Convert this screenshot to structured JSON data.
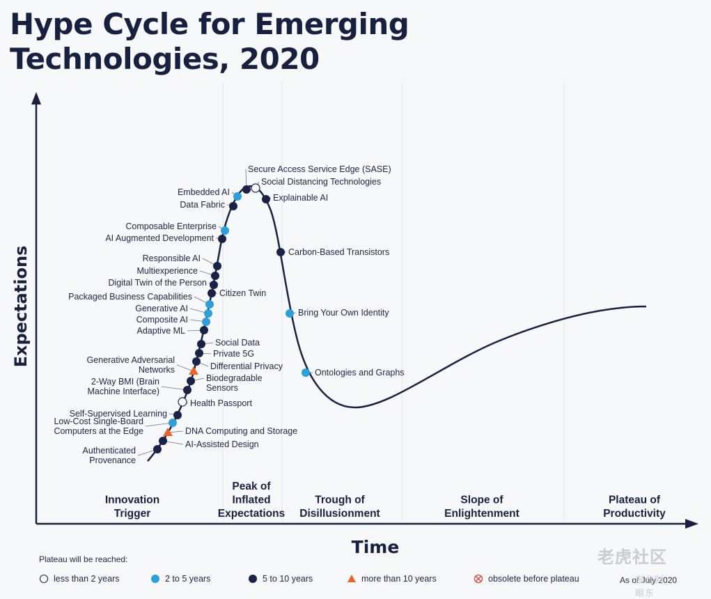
{
  "title": {
    "line1": "Hype Cycle for Emerging",
    "line2": "Technologies, 2020"
  },
  "axes": {
    "y_label": "Expectations",
    "x_label": "Time"
  },
  "phases": [
    {
      "lines": [
        "Innovation",
        "Trigger"
      ]
    },
    {
      "lines": [
        "Peak of",
        "Inflated",
        "Expectations"
      ]
    },
    {
      "lines": [
        "Trough of",
        "Disillusionment"
      ]
    },
    {
      "lines": [
        "Slope of",
        "Enlightenment"
      ]
    },
    {
      "lines": [
        "Plateau of",
        "Productivity"
      ]
    }
  ],
  "technologies": [
    {
      "name": [
        "Secure Access Service Edge (SASE)"
      ],
      "plateau": "5-10"
    },
    {
      "name": [
        "Social Distancing Technologies"
      ],
      "plateau": "<2"
    },
    {
      "name": [
        "Embedded AI"
      ],
      "plateau": "2-5"
    },
    {
      "name": [
        "Data Fabric"
      ],
      "plateau": "5-10"
    },
    {
      "name": [
        "Explainable AI"
      ],
      "plateau": "5-10"
    },
    {
      "name": [
        "Composable Enterprise"
      ],
      "plateau": "2-5"
    },
    {
      "name": [
        "AI Augmented Development"
      ],
      "plateau": "5-10"
    },
    {
      "name": [
        "Carbon-Based Transistors"
      ],
      "plateau": "5-10"
    },
    {
      "name": [
        "Responsible AI"
      ],
      "plateau": "5-10"
    },
    {
      "name": [
        "Multiexperience"
      ],
      "plateau": "5-10"
    },
    {
      "name": [
        "Digital Twin of the Person"
      ],
      "plateau": "5-10"
    },
    {
      "name": [
        "Citizen Twin"
      ],
      "plateau": "5-10"
    },
    {
      "name": [
        "Packaged Business Capabilities"
      ],
      "plateau": "2-5"
    },
    {
      "name": [
        "Generative AI"
      ],
      "plateau": "2-5"
    },
    {
      "name": [
        "Bring Your Own Identity"
      ],
      "plateau": "2-5"
    },
    {
      "name": [
        "Composite AI"
      ],
      "plateau": "2-5"
    },
    {
      "name": [
        "Adaptive ML"
      ],
      "plateau": "5-10"
    },
    {
      "name": [
        "Social Data"
      ],
      "plateau": "5-10"
    },
    {
      "name": [
        "Private 5G"
      ],
      "plateau": "5-10"
    },
    {
      "name": [
        "Differential Privacy"
      ],
      "plateau": "5-10"
    },
    {
      "name": [
        "Generative Adversarial",
        "Networks"
      ],
      "plateau": ">10"
    },
    {
      "name": [
        "Biodegradable",
        "Sensors"
      ],
      "plateau": "5-10"
    },
    {
      "name": [
        "2-Way BMI (Brain",
        "Machine Interface)"
      ],
      "plateau": "5-10"
    },
    {
      "name": [
        "Ontologies and Graphs"
      ],
      "plateau": "2-5"
    },
    {
      "name": [
        "Health Passport"
      ],
      "plateau": "<2"
    },
    {
      "name": [
        "Self-Supervised Learning"
      ],
      "plateau": "5-10"
    },
    {
      "name": [
        "Low-Cost Single-Board",
        "Computers at the Edge"
      ],
      "plateau": "2-5"
    },
    {
      "name": [
        "DNA Computing and Storage"
      ],
      "plateau": ">10"
    },
    {
      "name": [
        "AI-Assisted Design"
      ],
      "plateau": "5-10"
    },
    {
      "name": [
        "Authenticated",
        "Provenance"
      ],
      "plateau": "5-10"
    }
  ],
  "legend": {
    "caption": "Plateau will be reached:",
    "items": [
      {
        "key": "<2",
        "label": "less than 2 years",
        "symbol": "hollow-circle-icon",
        "color": "#ffffff"
      },
      {
        "key": "2-5",
        "label": "2 to 5 years",
        "symbol": "light-blue-circle-icon",
        "color": "#2e9fd9"
      },
      {
        "key": "5-10",
        "label": "5 to 10 years",
        "symbol": "dark-blue-circle-icon",
        "color": "#1a2347"
      },
      {
        "key": ">10",
        "label": "more than 10 years",
        "symbol": "orange-triangle-icon",
        "color": "#e8622a"
      },
      {
        "key": "obsolete",
        "label": "obsolete before plateau",
        "symbol": "crossed-circle-icon",
        "color": "#d9413a"
      }
    ]
  },
  "as_of": "As of July 2020",
  "watermark": {
    "text": "老虎社区",
    "sub": "东北财眼东"
  }
}
